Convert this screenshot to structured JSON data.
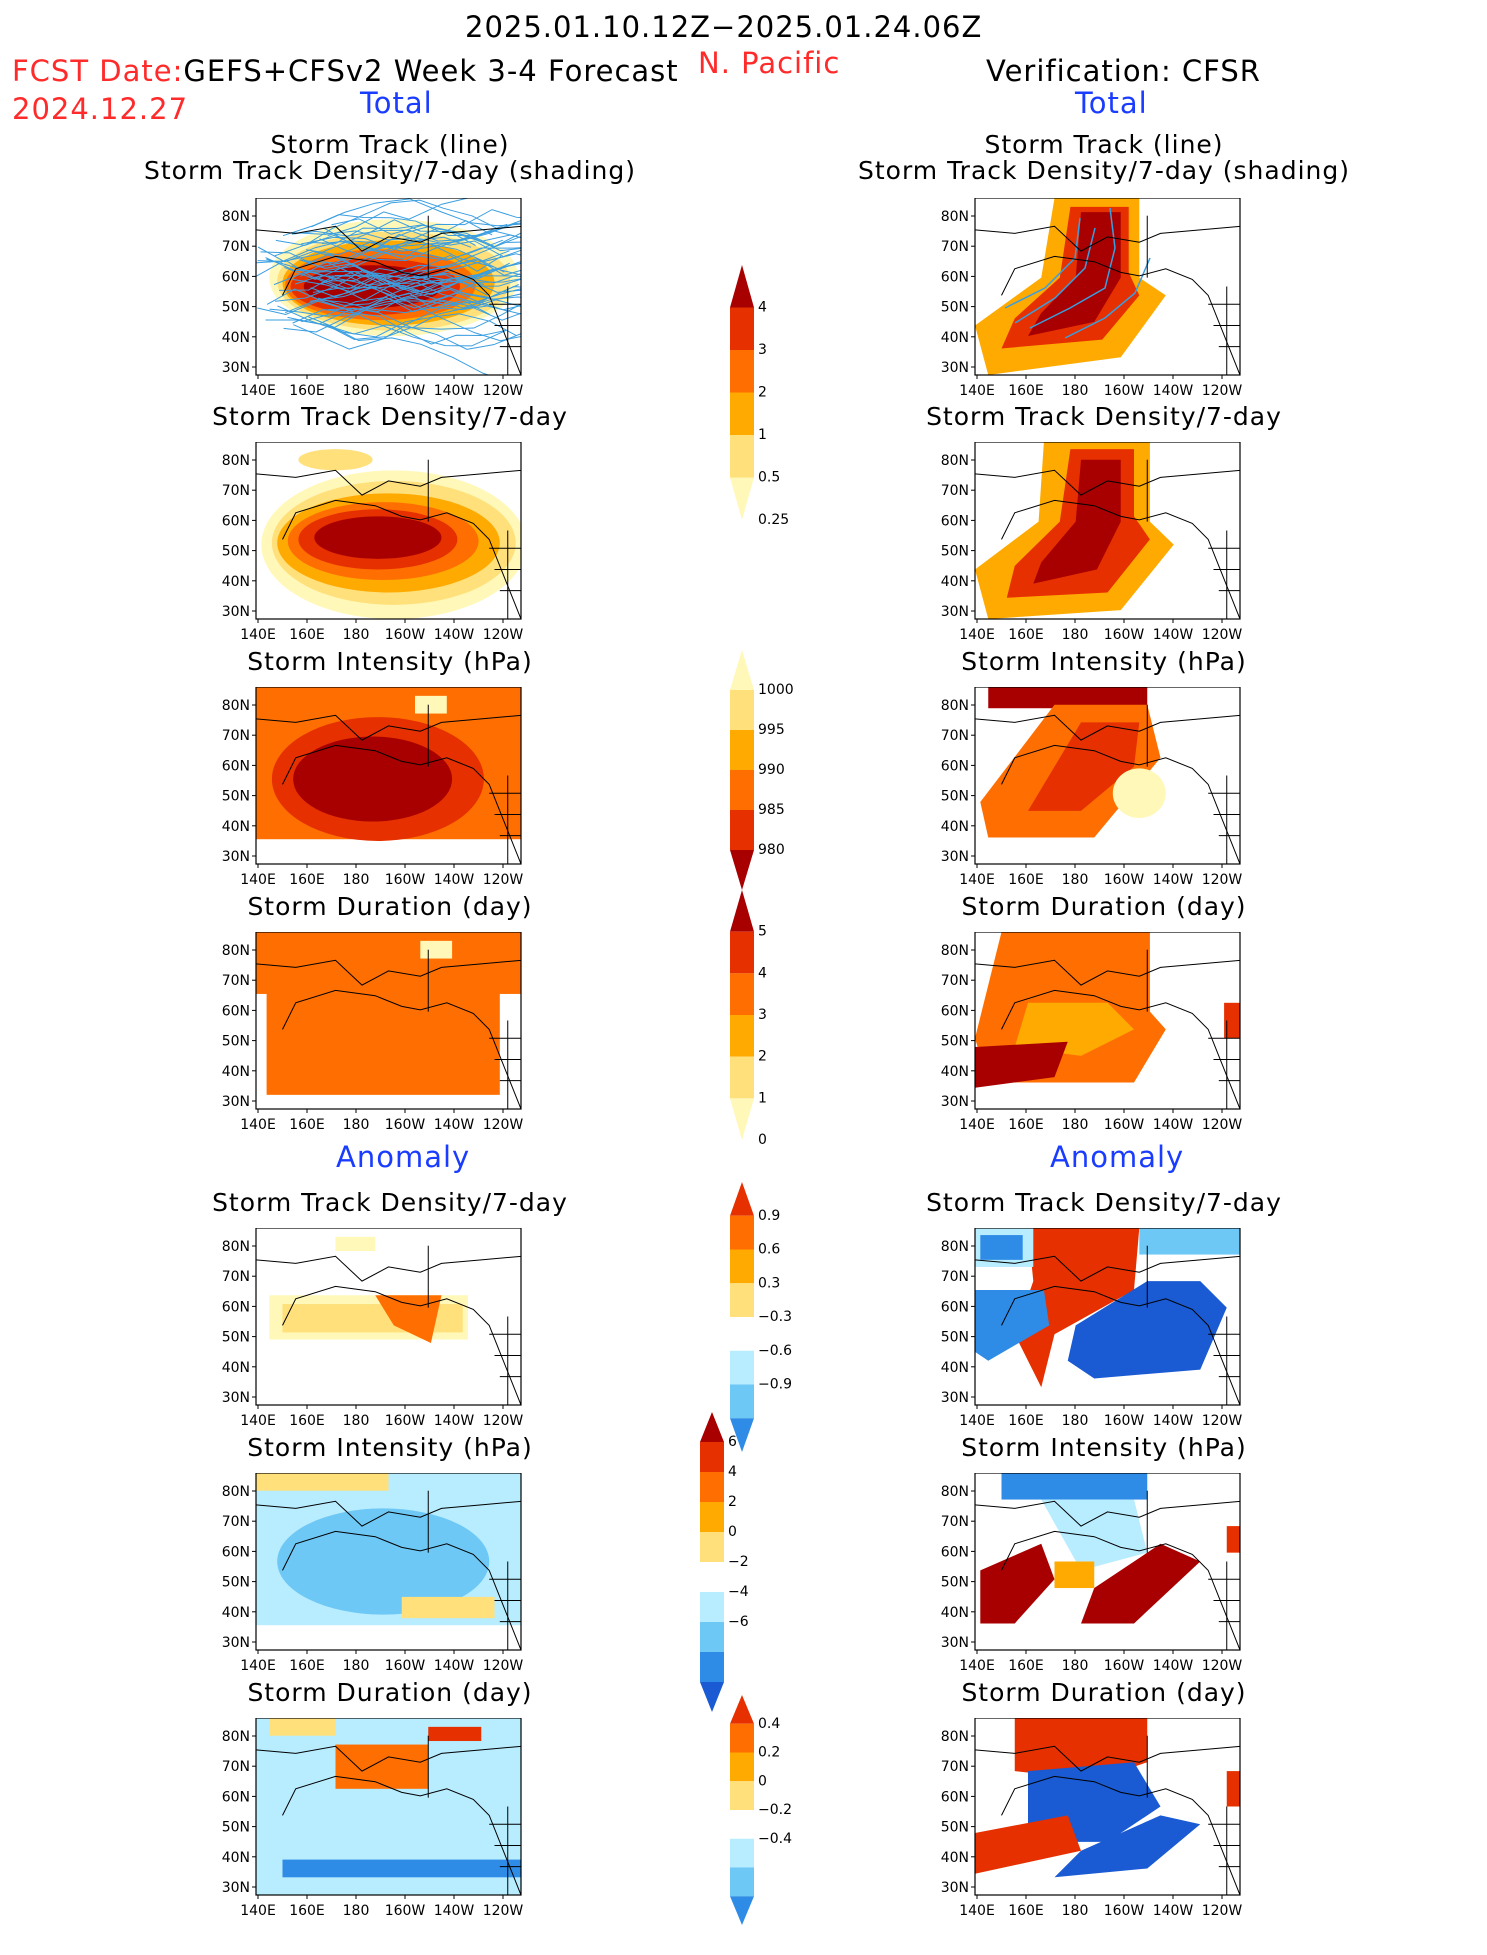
{
  "header": {
    "date_range": "2025.01.10.12Z−2025.01.24.06Z",
    "fcst_date_label": "FCST Date:",
    "fcst_model": "GEFS+CFSv2 Week 3-4 Forecast",
    "fcst_date": "2024.12.27",
    "region": "N. Pacific",
    "verification": "Verification: CFSR",
    "left_section": "Total",
    "right_section": "Total"
  },
  "sections": {
    "anomaly_left": "Anomaly",
    "anomaly_right": "Anomaly"
  },
  "panel_titles": {
    "track_line": "Storm Track (line)",
    "track_shading": "Storm Track Density/7-day (shading)",
    "density": "Storm Track Density/7-day",
    "intensity": "Storm Intensity (hPa)",
    "duration": "Storm Duration (day)"
  },
  "axes": {
    "lat_ticks": [
      "80N",
      "70N",
      "60N",
      "50N",
      "40N",
      "30N"
    ],
    "lon_ticks": [
      "140E",
      "160E",
      "180",
      "160W",
      "140W",
      "120W"
    ]
  },
  "colors": {
    "c0": "#fff8b8",
    "c1": "#ffe07a",
    "c2": "#ffaa00",
    "c3": "#ff6e00",
    "c4": "#e63000",
    "c5": "#a80000",
    "neg1": "#b8ecff",
    "neg2": "#6ec8f5",
    "neg3": "#2e8ce6",
    "neg4": "#1a5ad2",
    "track": "#3a9ee0"
  },
  "chart_data": [
    {
      "id": "fcst-total-track",
      "type": "heatmap",
      "title": "Storm Track (line)",
      "subtitle": "Storm Track Density/7-day (shading)",
      "cmap": "seq"
    },
    {
      "id": "cfsr-total-track",
      "type": "heatmap",
      "title": "Storm Track (line)",
      "subtitle": "Storm Track Density/7-day (shading)",
      "cmap": "seq"
    },
    {
      "id": "fcst-total-density",
      "type": "heatmap",
      "title": "Storm Track Density/7-day",
      "cmap": "seq"
    },
    {
      "id": "cfsr-total-density",
      "type": "heatmap",
      "title": "Storm Track Density/7-day",
      "cmap": "seq"
    },
    {
      "id": "fcst-total-intensity",
      "type": "heatmap",
      "title": "Storm Intensity (hPa)",
      "cmap": "seq"
    },
    {
      "id": "cfsr-total-intensity",
      "type": "heatmap",
      "title": "Storm Intensity (hPa)",
      "cmap": "seq"
    },
    {
      "id": "fcst-total-duration",
      "type": "heatmap",
      "title": "Storm Duration (day)",
      "cmap": "seq"
    },
    {
      "id": "cfsr-total-duration",
      "type": "heatmap",
      "title": "Storm Duration (day)",
      "cmap": "seq"
    },
    {
      "id": "fcst-anom-density",
      "type": "heatmap",
      "title": "Storm Track Density/7-day",
      "cmap": "div"
    },
    {
      "id": "cfsr-anom-density",
      "type": "heatmap",
      "title": "Storm Track Density/7-day",
      "cmap": "div"
    },
    {
      "id": "fcst-anom-intensity",
      "type": "heatmap",
      "title": "Storm Intensity (hPa)",
      "cmap": "div"
    },
    {
      "id": "cfsr-anom-intensity",
      "type": "heatmap",
      "title": "Storm Intensity (hPa)",
      "cmap": "div"
    },
    {
      "id": "fcst-anom-duration",
      "type": "heatmap",
      "title": "Storm Duration (day)",
      "cmap": "div"
    },
    {
      "id": "cfsr-anom-duration",
      "type": "heatmap",
      "title": "Storm Duration (day)",
      "cmap": "div"
    }
  ],
  "colorbars": [
    {
      "id": "cb-density",
      "labels": [
        "4",
        "3",
        "2",
        "1",
        "0.5",
        "0.25"
      ]
    },
    {
      "id": "cb-intensity",
      "labels": [
        "1000",
        "995",
        "990",
        "985",
        "980"
      ]
    },
    {
      "id": "cb-duration",
      "labels": [
        "5",
        "4",
        "3",
        "2",
        "1",
        "0"
      ]
    },
    {
      "id": "cb-anom-density",
      "labels": [
        "0.9",
        "0.6",
        "0.3",
        "−0.3",
        "−0.6",
        "−0.9"
      ]
    },
    {
      "id": "cb-anom-intensity",
      "labels": [
        "6",
        "4",
        "2",
        "0",
        "−2",
        "−4",
        "−6"
      ]
    },
    {
      "id": "cb-anom-duration",
      "labels": [
        "0.4",
        "0.2",
        "0",
        "−0.2",
        "−0.4"
      ]
    }
  ]
}
